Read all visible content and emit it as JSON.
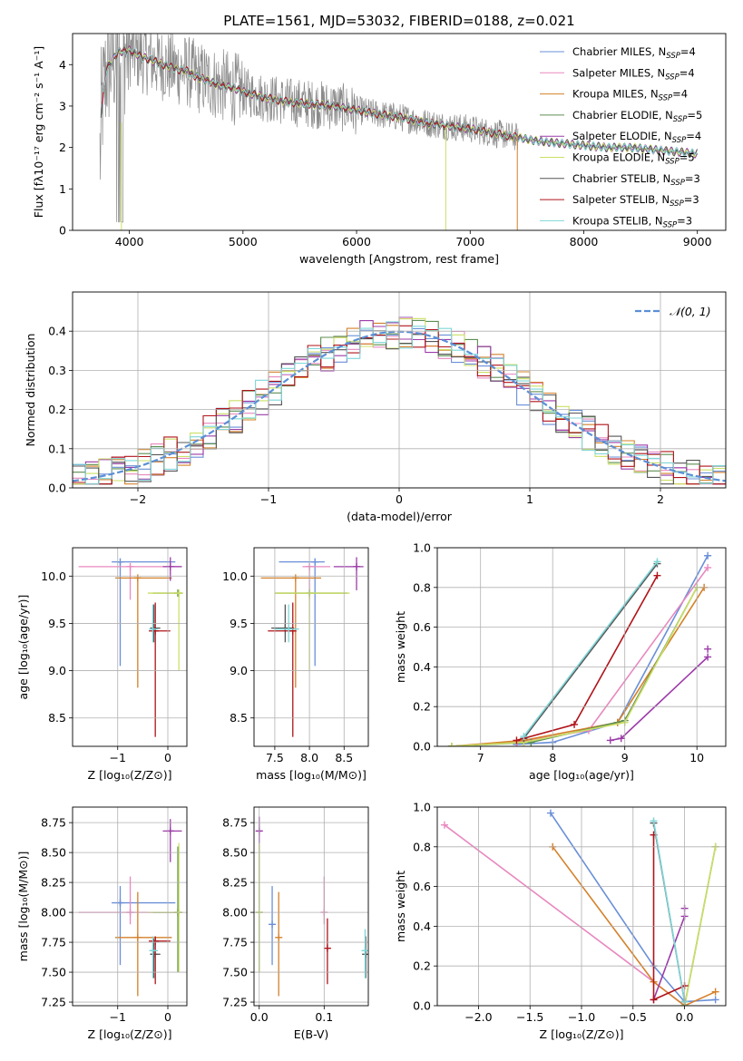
{
  "figure": {
    "suptitle": "PLATE=1561, MJD=53032, FIBERID=0188, z=0.021"
  },
  "styles": {
    "colors": {
      "Chabrier MILES": "#6a8fd8",
      "Salpeter MILES": "#e888bf",
      "Kroupa MILES": "#d4802a",
      "Chabrier ELODIE": "#5d8f52",
      "Salpeter ELODIE": "#9c3ba8",
      "Kroupa ELODIE": "#ccdf66",
      "Chabrier STELIB": "#555555",
      "Salpeter STELIB": "#b0141a",
      "Kroupa STELIB": "#7fd6d8",
      "data": "#8a8a8a",
      "gauss": "#5b8fd6",
      "grid": "#b0b0b0"
    }
  },
  "chart_data": [
    {
      "id": "spectrum",
      "type": "line",
      "xlabel": "wavelength [Angstrom, rest frame]",
      "ylabel": "Flux [fλ10⁻¹⁷ erg cm⁻² s⁻¹ A⁻¹]",
      "xlim": [
        3500,
        9250
      ],
      "ylim": [
        0,
        4.75
      ],
      "xticks": [
        4000,
        5000,
        6000,
        7000,
        8000,
        9000
      ],
      "yticks": [
        0,
        1,
        2,
        3,
        4
      ],
      "grid": false,
      "legend_position": "top-right",
      "legend": [
        {
          "model": "Chabrier MILES",
          "label": "Chabrier MILES, N",
          "sub": "SSP",
          "tail": "=4"
        },
        {
          "model": "Salpeter MILES",
          "label": "Salpeter MILES, N",
          "sub": "SSP",
          "tail": "=4"
        },
        {
          "model": "Kroupa MILES",
          "label": "Kroupa MILES, N",
          "sub": "SSP",
          "tail": "=4"
        },
        {
          "model": "Chabrier ELODIE",
          "label": "Chabrier ELODIE, N",
          "sub": "SSP",
          "tail": "=5"
        },
        {
          "model": "Salpeter ELODIE",
          "label": "Salpeter ELODIE, N",
          "sub": "SSP",
          "tail": "=4"
        },
        {
          "model": "Kroupa ELODIE",
          "label": "Kroupa ELODIE, N",
          "sub": "SSP",
          "tail": "=5"
        },
        {
          "model": "Chabrier STELIB",
          "label": "Chabrier STELIB, N",
          "sub": "SSP",
          "tail": "=3"
        },
        {
          "model": "Salpeter STELIB",
          "label": "Salpeter STELIB, N",
          "sub": "SSP",
          "tail": "=3"
        },
        {
          "model": "Kroupa STELIB",
          "label": "Kroupa STELIB, N",
          "sub": "SSP",
          "tail": "=3"
        }
      ],
      "model_continuum": {
        "x": [
          3750,
          3800,
          3900,
          4000,
          4100,
          4200,
          4300,
          4400,
          4500,
          4600,
          4700,
          4800,
          4900,
          5000,
          5200,
          5400,
          5600,
          5800,
          6000,
          6200,
          6400,
          6600,
          6800,
          7000,
          7200,
          7400,
          7600,
          7800,
          8000,
          8200,
          8400,
          8600,
          8800,
          9000
        ],
        "y": [
          2.8,
          3.9,
          4.3,
          4.35,
          4.2,
          4.1,
          4.0,
          3.9,
          3.85,
          3.7,
          3.6,
          3.5,
          3.45,
          3.35,
          3.2,
          3.1,
          3.05,
          3.0,
          2.9,
          2.8,
          2.72,
          2.6,
          2.52,
          2.45,
          2.35,
          2.25,
          2.15,
          2.1,
          2.05,
          2.0,
          2.0,
          1.95,
          1.9,
          1.85
        ]
      },
      "data_range": [
        3700,
        7420
      ]
    },
    {
      "id": "residuals",
      "type": "histogram",
      "xlabel": "(data-model)/error",
      "ylabel": "Normed distribution",
      "xlim": [
        -2.5,
        2.5
      ],
      "ylim": [
        0,
        0.5
      ],
      "xticks": [
        -2,
        -1,
        0,
        1,
        2
      ],
      "yticks": [
        0.0,
        0.1,
        0.2,
        0.3,
        0.4
      ],
      "grid": true,
      "legend_position": "top-right",
      "legend": [
        {
          "label": "𝒩(0, 1)"
        }
      ],
      "gaussian": {
        "mean": 0,
        "sigma": 1
      }
    },
    {
      "id": "age-Z",
      "type": "scatter",
      "xlabel": "Z [log₁₀(Z/Z⊙)]",
      "ylabel": "age  [log₁₀(age/yr)]",
      "xlim": [
        -1.9,
        0.38
      ],
      "ylim": [
        8.2,
        10.3
      ],
      "xticks": [
        -1,
        0
      ],
      "yticks": [
        8.5,
        9.0,
        9.5,
        10.0
      ],
      "grid": true,
      "points": [
        {
          "m": "Chabrier MILES",
          "x": -0.95,
          "y": 10.15,
          "xl": -1.12,
          "xh": 0.15,
          "yl": 9.05,
          "yh": 10.15
        },
        {
          "m": "Salpeter MILES",
          "x": -0.75,
          "y": 10.1,
          "xl": -1.78,
          "xh": 0.28,
          "yl": 9.75,
          "yh": 10.1
        },
        {
          "m": "Kroupa MILES",
          "x": -0.6,
          "y": 9.98,
          "xl": -1.05,
          "xh": 0.08,
          "yl": 8.82,
          "yh": 9.98
        },
        {
          "m": "Chabrier ELODIE",
          "x": 0.2,
          "y": 9.82,
          "xl": -0.3,
          "xh": 0.3,
          "yl": 9.8,
          "yh": 9.82
        },
        {
          "m": "Salpeter ELODIE",
          "x": 0.05,
          "y": 10.1,
          "xl": -0.1,
          "xh": 0.28,
          "yl": 9.95,
          "yh": 10.2
        },
        {
          "m": "Kroupa ELODIE",
          "x": 0.22,
          "y": 9.82,
          "xl": -0.4,
          "xh": 0.3,
          "yl": 9.0,
          "yh": 9.82
        },
        {
          "m": "Chabrier STELIB",
          "x": -0.28,
          "y": 9.45,
          "xl": -0.35,
          "xh": -0.15,
          "yl": 9.3,
          "yh": 9.7
        },
        {
          "m": "Salpeter STELIB",
          "x": -0.25,
          "y": 9.42,
          "xl": -0.38,
          "xh": 0.05,
          "yl": 8.3,
          "yh": 9.72
        },
        {
          "m": "Kroupa STELIB",
          "x": -0.3,
          "y": 9.44,
          "xl": -0.35,
          "xh": -0.2,
          "yl": 9.3,
          "yh": 9.7
        }
      ]
    },
    {
      "id": "age-mass",
      "type": "scatter",
      "xlabel": "mass [log₁₀(M/M⊙)]",
      "ylabel": "",
      "xlim": [
        7.2,
        8.85
      ],
      "ylim": [
        8.2,
        10.3
      ],
      "xticks": [
        7.5,
        8.0,
        8.5
      ],
      "yticks": [
        8.5,
        9.0,
        9.5,
        10.0
      ],
      "grid": true,
      "points": [
        {
          "m": "Chabrier MILES",
          "x": 8.08,
          "y": 10.15,
          "xl": 7.56,
          "xh": 8.22,
          "yl": 9.05,
          "yh": 10.15
        },
        {
          "m": "Salpeter MILES",
          "x": 8.0,
          "y": 10.1,
          "xl": 7.9,
          "xh": 8.3,
          "yl": 9.75,
          "yh": 10.1
        },
        {
          "m": "Kroupa MILES",
          "x": 7.8,
          "y": 9.98,
          "xl": 7.3,
          "xh": 8.17,
          "yl": 8.82,
          "yh": 9.98
        },
        {
          "m": "Chabrier ELODIE",
          "x": 8.0,
          "y": 9.82,
          "xl": 7.5,
          "xh": 8.55,
          "yl": 9.8,
          "yh": 9.82
        },
        {
          "m": "Salpeter ELODIE",
          "x": 8.68,
          "y": 10.1,
          "xl": 8.35,
          "xh": 8.78,
          "yl": 9.85,
          "yh": 10.2
        },
        {
          "m": "Kroupa ELODIE",
          "x": 8.0,
          "y": 9.82,
          "xl": 7.5,
          "xh": 8.58,
          "yl": 9.0,
          "yh": 9.82
        },
        {
          "m": "Chabrier STELIB",
          "x": 7.65,
          "y": 9.45,
          "xl": 7.45,
          "xh": 7.78,
          "yl": 9.3,
          "yh": 9.7
        },
        {
          "m": "Salpeter STELIB",
          "x": 7.76,
          "y": 9.42,
          "xl": 7.4,
          "xh": 7.8,
          "yl": 8.3,
          "yh": 9.72
        },
        {
          "m": "Kroupa STELIB",
          "x": 7.7,
          "y": 9.44,
          "xl": 7.5,
          "xh": 7.85,
          "yl": 9.3,
          "yh": 9.7
        }
      ]
    },
    {
      "id": "weight-age",
      "type": "line",
      "xlabel": "age  [log₁₀(age/yr)]",
      "ylabel": "mass weight",
      "xlim": [
        6.4,
        10.4
      ],
      "ylim": [
        0,
        1.0
      ],
      "xticks": [
        7,
        8,
        9,
        10
      ],
      "yticks": [
        0.0,
        0.2,
        0.4,
        0.6,
        0.8,
        1.0
      ],
      "grid": true,
      "series": [
        {
          "m": "Chabrier MILES",
          "x": [
            7.5,
            8.0,
            8.9,
            10.15
          ],
          "y": [
            0.01,
            0.02,
            0.12,
            0.96
          ]
        },
        {
          "m": "Salpeter MILES",
          "x": [
            6.6,
            7.5,
            8.5,
            10.15
          ],
          "y": [
            0.0,
            0.02,
            0.08,
            0.9
          ]
        },
        {
          "m": "Kroupa MILES",
          "x": [
            6.6,
            7.6,
            8.9,
            10.1
          ],
          "y": [
            0.0,
            0.03,
            0.12,
            0.8
          ]
        },
        {
          "m": "Chabrier ELODIE",
          "x": [
            6.6,
            7.7,
            9.0,
            10.0
          ],
          "y": [
            0.0,
            0.02,
            0.13,
            0.8
          ]
        },
        {
          "m": "Salpeter ELODIE",
          "x": [
            8.8,
            8.95,
            10.15
          ],
          "y": [
            0.03,
            0.04,
            0.45
          ]
        },
        {
          "m": "Kroupa ELODIE",
          "x": [
            6.6,
            7.6,
            9.0,
            10.0
          ],
          "y": [
            0.0,
            0.02,
            0.12,
            0.8
          ]
        },
        {
          "m": "Chabrier STELIB",
          "x": [
            7.6,
            9.45
          ],
          "y": [
            0.04,
            0.92
          ]
        },
        {
          "m": "Salpeter STELIB",
          "x": [
            7.5,
            8.3,
            9.45
          ],
          "y": [
            0.03,
            0.11,
            0.86
          ]
        },
        {
          "m": "Kroupa STELIB",
          "x": [
            7.6,
            9.45
          ],
          "y": [
            0.05,
            0.93
          ]
        }
      ],
      "extra_points": [
        {
          "m": "Salpeter ELODIE",
          "x": 10.15,
          "y": 0.49
        }
      ]
    },
    {
      "id": "mass-Z",
      "type": "scatter",
      "xlabel": "Z [log₁₀(Z/Z⊙)]",
      "ylabel": "mass [log₁₀(M/M⊙)]",
      "xlim": [
        -1.9,
        0.38
      ],
      "ylim": [
        7.22,
        8.88
      ],
      "xticks": [
        -1,
        0
      ],
      "yticks": [
        7.25,
        7.5,
        7.75,
        8.0,
        8.25,
        8.5,
        8.75
      ],
      "grid": true,
      "points": [
        {
          "m": "Chabrier MILES",
          "x": -0.95,
          "y": 8.08,
          "xl": -1.12,
          "xh": 0.15,
          "yl": 7.56,
          "yh": 8.22
        },
        {
          "m": "Salpeter MILES",
          "x": -0.75,
          "y": 8.0,
          "xl": -1.78,
          "xh": 0.28,
          "yl": 7.9,
          "yh": 8.3
        },
        {
          "m": "Kroupa MILES",
          "x": -0.6,
          "y": 7.79,
          "xl": -1.05,
          "xh": 0.08,
          "yl": 7.3,
          "yh": 8.17
        },
        {
          "m": "Chabrier ELODIE",
          "x": 0.2,
          "y": 8.0,
          "xl": -0.3,
          "xh": 0.3,
          "yl": 7.5,
          "yh": 8.55
        },
        {
          "m": "Salpeter ELODIE",
          "x": 0.05,
          "y": 8.68,
          "xl": -0.1,
          "xh": 0.28,
          "yl": 8.42,
          "yh": 8.78
        },
        {
          "m": "Kroupa ELODIE",
          "x": 0.22,
          "y": 8.0,
          "xl": -0.4,
          "xh": 0.3,
          "yl": 7.5,
          "yh": 8.58
        },
        {
          "m": "Chabrier STELIB",
          "x": -0.28,
          "y": 7.65,
          "xl": -0.35,
          "xh": -0.15,
          "yl": 7.45,
          "yh": 7.78
        },
        {
          "m": "Salpeter STELIB",
          "x": -0.25,
          "y": 7.76,
          "xl": -0.38,
          "xh": 0.05,
          "yl": 7.4,
          "yh": 7.8
        },
        {
          "m": "Kroupa STELIB",
          "x": -0.3,
          "y": 7.68,
          "xl": -0.35,
          "xh": -0.2,
          "yl": 7.45,
          "yh": 7.8
        }
      ]
    },
    {
      "id": "mass-EBV",
      "type": "scatter",
      "xlabel": "E(B-V)",
      "ylabel": "",
      "xlim": [
        -0.008,
        0.168
      ],
      "ylim": [
        7.22,
        8.88
      ],
      "xticks": [
        0.0,
        0.1
      ],
      "yticks": [
        7.25,
        7.5,
        7.75,
        8.0,
        8.25,
        8.5,
        8.75
      ],
      "grid": true,
      "points": [
        {
          "m": "Chabrier MILES",
          "x": 0.02,
          "y": 7.9,
          "yl": 7.56,
          "yh": 8.22
        },
        {
          "m": "Salpeter MILES",
          "x": 0.1,
          "y": 8.0,
          "yl": 7.9,
          "yh": 8.3
        },
        {
          "m": "Kroupa MILES",
          "x": 0.03,
          "y": 7.79,
          "yl": 7.3,
          "yh": 8.17
        },
        {
          "m": "Chabrier ELODIE",
          "x": 0.0,
          "y": 8.0,
          "yl": 7.5,
          "yh": 8.55
        },
        {
          "m": "Salpeter ELODIE",
          "x": 0.0,
          "y": 8.68,
          "yl": 8.5,
          "yh": 8.8
        },
        {
          "m": "Kroupa ELODIE",
          "x": 0.0,
          "y": 8.0,
          "yl": 7.5,
          "yh": 8.58
        },
        {
          "m": "Chabrier STELIB",
          "x": 0.164,
          "y": 7.65,
          "yl": 7.45,
          "yh": 7.8
        },
        {
          "m": "Salpeter STELIB",
          "x": 0.105,
          "y": 7.7,
          "yl": 7.4,
          "yh": 7.95
        },
        {
          "m": "Kroupa STELIB",
          "x": 0.163,
          "y": 7.68,
          "yl": 7.45,
          "yh": 7.86
        }
      ]
    },
    {
      "id": "weight-Z",
      "type": "line",
      "xlabel": "Z [log₁₀(Z/Z⊙)]",
      "ylabel": "mass weight",
      "xlim": [
        -2.4,
        0.4
      ],
      "ylim": [
        0,
        1.0
      ],
      "xticks": [
        -2.0,
        -1.5,
        -1.0,
        -0.5,
        0.0
      ],
      "yticks": [
        0.0,
        0.2,
        0.4,
        0.6,
        0.8,
        1.0
      ],
      "grid": true,
      "series": [
        {
          "m": "Chabrier MILES",
          "x": [
            -1.3,
            -0.3,
            0.0,
            0.3
          ],
          "y": [
            0.97,
            0.2,
            0.02,
            0.03
          ]
        },
        {
          "m": "Salpeter MILES",
          "x": [
            -2.33,
            -0.3,
            0.0
          ],
          "y": [
            0.91,
            0.12,
            0.0
          ]
        },
        {
          "m": "Kroupa MILES",
          "x": [
            -1.28,
            -0.3,
            0.0,
            0.3
          ],
          "y": [
            0.8,
            0.12,
            0.0,
            0.07
          ]
        },
        {
          "m": "Chabrier ELODIE",
          "x": [
            0.0,
            0.3
          ],
          "y": [
            0.0,
            0.8
          ]
        },
        {
          "m": "Salpeter ELODIE",
          "x": [
            -0.3,
            0.0
          ],
          "y": [
            0.03,
            0.45
          ]
        },
        {
          "m": "Kroupa ELODIE",
          "x": [
            0.0,
            0.3
          ],
          "y": [
            0.0,
            0.8
          ]
        },
        {
          "m": "Chabrier STELIB",
          "x": [
            -0.3,
            0.0
          ],
          "y": [
            0.92,
            0.02
          ]
        },
        {
          "m": "Salpeter STELIB",
          "x": [
            -0.3,
            -0.3,
            0.0
          ],
          "y": [
            0.86,
            0.03,
            0.1
          ]
        },
        {
          "m": "Kroupa STELIB",
          "x": [
            -0.3,
            0.0
          ],
          "y": [
            0.93,
            0.02
          ]
        }
      ],
      "extra_points": [
        {
          "m": "Salpeter ELODIE",
          "x": 0.0,
          "y": 0.49
        }
      ]
    }
  ]
}
